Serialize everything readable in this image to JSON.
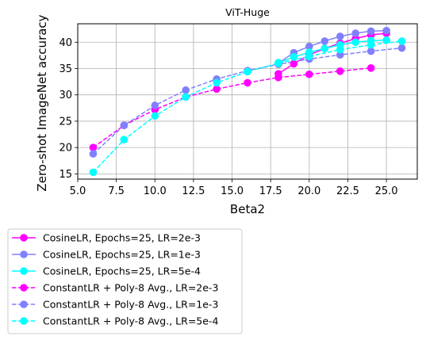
{
  "chart_data": {
    "type": "line",
    "title": "ViT-Huge",
    "xlabel": "Beta2",
    "ylabel": "Zero-shot ImageNet accuracy",
    "xlim": [
      5.0,
      27.0
    ],
    "ylim": [
      14.0,
      43.5
    ],
    "x_ticks": [
      5.0,
      7.5,
      10.0,
      12.5,
      15.0,
      17.5,
      20.0,
      22.5,
      25.0
    ],
    "x_tick_labels": [
      "5.0",
      "7.5",
      "10.0",
      "12.5",
      "15.0",
      "17.5",
      "20.0",
      "22.5",
      "25.0"
    ],
    "y_ticks": [
      15,
      20,
      25,
      30,
      35,
      40
    ],
    "y_tick_labels": [
      "15",
      "20",
      "25",
      "30",
      "35",
      "40"
    ],
    "grid": true,
    "legend_position": "below-left",
    "series": [
      {
        "name": "CosineLR, Epochs=25, LR=2e-3",
        "color": "#ff00ff",
        "linestyle": "solid",
        "x": [
          18,
          19,
          20,
          21,
          22,
          23,
          24,
          25
        ],
        "y": [
          34.0,
          35.9,
          37.6,
          38.8,
          39.8,
          40.7,
          41.4,
          41.7
        ]
      },
      {
        "name": "CosineLR, Epochs=25, LR=1e-3",
        "color": "#8080ff",
        "linestyle": "solid",
        "x": [
          18,
          19,
          20,
          21,
          22,
          23,
          24,
          25
        ],
        "y": [
          36.0,
          38.0,
          39.2,
          40.2,
          41.1,
          41.7,
          42.1,
          42.2
        ]
      },
      {
        "name": "CosineLR, Epochs=25, LR=5e-4",
        "color": "#00ffff",
        "linestyle": "solid",
        "x": [
          18,
          19,
          20,
          21,
          22,
          23,
          24,
          25
        ],
        "y": [
          36.1,
          37.2,
          38.1,
          38.8,
          39.5,
          40.0,
          40.3,
          40.4
        ]
      },
      {
        "name": "ConstantLR + Poly-8 Avg., LR=2e-3",
        "color": "#ff00ff",
        "linestyle": "dashed",
        "x": [
          6,
          8,
          10,
          12,
          14,
          16,
          18,
          20,
          22,
          24
        ],
        "y": [
          20.0,
          24.2,
          27.2,
          29.6,
          31.1,
          32.3,
          33.3,
          33.9,
          34.5,
          35.1
        ]
      },
      {
        "name": "ConstantLR + Poly-8 Avg., LR=1e-3",
        "color": "#8080ff",
        "linestyle": "dashed",
        "x": [
          6,
          8,
          10,
          12,
          14,
          16,
          18,
          20,
          22,
          24,
          26
        ],
        "y": [
          18.8,
          24.2,
          28.0,
          30.9,
          33.0,
          34.6,
          35.8,
          36.8,
          37.6,
          38.3,
          38.9
        ]
      },
      {
        "name": "ConstantLR + Poly-8 Avg., LR=5e-4",
        "color": "#00ffff",
        "linestyle": "dashed",
        "x": [
          6,
          8,
          10,
          12,
          14,
          16,
          18,
          20,
          22,
          24,
          26
        ],
        "y": [
          15.3,
          21.5,
          26.0,
          29.6,
          32.3,
          34.4,
          36.0,
          37.3,
          38.6,
          39.5,
          40.2
        ]
      }
    ]
  }
}
